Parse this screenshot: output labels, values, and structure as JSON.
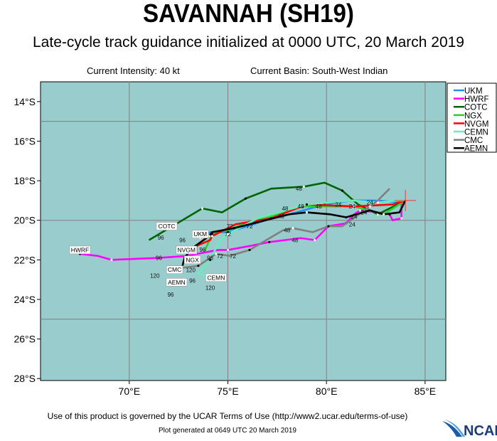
{
  "header": {
    "title": "SAVANNAH (SH19)",
    "subtitle": "Late-cycle track guidance initialized at 0000 UTC, 20 March 2019",
    "intensity": "Current Intensity: 40 kt",
    "basin": "Current Basin: South-West Indian"
  },
  "footer": {
    "terms": "Use of this product is governed by the UCAR Terms of Use (http://www2.ucar.edu/terms-of-use)",
    "generated": "Plot generated at 0649 UTC   20 March 2019",
    "logo_text": "NCAR"
  },
  "colors": {
    "ocean": "#99cccc",
    "grid": "#808080",
    "start_marker": "#ff3333"
  },
  "chart_data": {
    "type": "line",
    "xlim": [
      65.5,
      86.05
    ],
    "ylim": [
      -28.1,
      -13.0
    ],
    "grid": true,
    "legend": "top-right-outside",
    "x_ticks": [
      {
        "v": 70,
        "label": "70°E"
      },
      {
        "v": 75,
        "label": "75°E"
      },
      {
        "v": 80,
        "label": "80°E"
      },
      {
        "v": 85,
        "label": "85°E"
      }
    ],
    "y_ticks": [
      {
        "v": -14,
        "label": "14°S"
      },
      {
        "v": -16,
        "label": "16°S"
      },
      {
        "v": -18,
        "label": "18°S"
      },
      {
        "v": -20,
        "label": "20°S"
      },
      {
        "v": -22,
        "label": "22°S"
      },
      {
        "v": -24,
        "label": "24°S"
      },
      {
        "v": -26,
        "label": "26°S"
      },
      {
        "v": -28,
        "label": "28°S"
      }
    ],
    "grid_lon": [
      70,
      75,
      80,
      85
    ],
    "grid_lat": [
      -15,
      -20,
      -25
    ],
    "start": [
      84.0,
      -19.0
    ],
    "series": [
      {
        "name": "UKM",
        "color": "#1e90ff",
        "label_at": [
          73.6,
          -20.7
        ],
        "points": [
          [
            84,
            -19
          ],
          [
            83.8,
            -19.1
          ],
          [
            82.6,
            -19.0
          ],
          [
            81.3,
            -19.0
          ],
          [
            79.9,
            -19.2
          ],
          [
            78.1,
            -19.7
          ],
          [
            77.2,
            -19.9
          ],
          [
            76.0,
            -20.3
          ],
          [
            75.0,
            -20.6
          ],
          [
            74.1,
            -20.6
          ],
          [
            73.6,
            -20.9
          ]
        ]
      },
      {
        "name": "HWRF",
        "color": "#ff00ff",
        "label_at": [
          67.5,
          -21.5
        ],
        "points": [
          [
            84,
            -19
          ],
          [
            83.8,
            -19.2
          ],
          [
            83.8,
            -19.9
          ],
          [
            83.35,
            -20.0
          ],
          [
            83.2,
            -19.7
          ],
          [
            82.6,
            -19.6
          ],
          [
            81.7,
            -19.5
          ],
          [
            81.4,
            -19.7
          ],
          [
            81.0,
            -20.15
          ],
          [
            80.1,
            -20.3
          ],
          [
            79.4,
            -21.0
          ],
          [
            78.7,
            -20.9
          ],
          [
            77.1,
            -21.1
          ],
          [
            76.1,
            -21.3
          ],
          [
            75.0,
            -21.5
          ],
          [
            74.5,
            -21.5
          ],
          [
            72.9,
            -21.8
          ],
          [
            71.5,
            -21.9
          ],
          [
            69.1,
            -22.0
          ],
          [
            68.4,
            -21.8
          ],
          [
            67.5,
            -21.7
          ]
        ]
      },
      {
        "name": "COTC",
        "color": "#006400",
        "label_at": [
          71.9,
          -20.3
        ],
        "points": [
          [
            84,
            -19
          ],
          [
            83.2,
            -19.4
          ],
          [
            82.6,
            -19.7
          ],
          [
            81.6,
            -19.2
          ],
          [
            80.8,
            -18.5
          ],
          [
            79.9,
            -18.1
          ],
          [
            78.85,
            -18.3
          ],
          [
            77.2,
            -18.4
          ],
          [
            75.9,
            -18.9
          ],
          [
            74.7,
            -19.6
          ],
          [
            73.7,
            -19.4
          ],
          [
            71.0,
            -21.0
          ]
        ]
      },
      {
        "name": "NGX",
        "color": "#33cc33",
        "label_at": [
          73.2,
          -22.0
        ],
        "points": [
          [
            84,
            -19
          ],
          [
            82.9,
            -19.7
          ],
          [
            81.4,
            -19.3
          ],
          [
            79.9,
            -19.3
          ],
          [
            78.8,
            -19.3
          ],
          [
            77.2,
            -19.8
          ],
          [
            76.0,
            -20.1
          ],
          [
            75.0,
            -20.5
          ],
          [
            74.2,
            -20.7
          ],
          [
            73.8,
            -21.6
          ]
        ]
      },
      {
        "name": "NVGM",
        "color": "#ff0000",
        "label_at": [
          72.9,
          -21.5
        ],
        "points": [
          [
            84,
            -19
          ],
          [
            83.35,
            -19.2
          ],
          [
            81.4,
            -19.3
          ],
          [
            79.0,
            -19.2
          ],
          [
            77.2,
            -19.9
          ],
          [
            75.4,
            -20.2
          ],
          [
            74.2,
            -20.8
          ],
          [
            74.1,
            -21.0
          ],
          [
            73.4,
            -21.3
          ],
          [
            73.4,
            -21.7
          ]
        ]
      },
      {
        "name": "CEMN",
        "color": "#66eebb",
        "label_at": [
          74.4,
          -22.9
        ],
        "points": [
          [
            84,
            -19
          ],
          [
            83.6,
            -19.0
          ],
          [
            82.6,
            -19.1
          ],
          [
            81.3,
            -19.0
          ],
          [
            79.0,
            -19.2
          ],
          [
            76.5,
            -19.9
          ],
          [
            75.0,
            -20.7
          ],
          [
            74.6,
            -21.0
          ],
          [
            74.1,
            -22.0
          ],
          [
            73.5,
            -22.7
          ],
          [
            74.3,
            -22.9
          ]
        ]
      },
      {
        "name": "CMC",
        "color": "#808080",
        "label_at": [
          72.3,
          -22.5
        ],
        "points": [
          [
            83.2,
            -18.4
          ],
          [
            82.6,
            -19.0
          ],
          [
            82.2,
            -19.3
          ],
          [
            80.8,
            -20.3
          ],
          [
            80.1,
            -20.3
          ],
          [
            79.3,
            -20.6
          ],
          [
            78.3,
            -20.4
          ],
          [
            77.8,
            -20.5
          ],
          [
            76.1,
            -21.5
          ],
          [
            75.1,
            -21.8
          ],
          [
            74.4,
            -21.7
          ],
          [
            74.1,
            -21.9
          ],
          [
            73.5,
            -22.3
          ],
          [
            72.7,
            -22.4
          ],
          [
            72.5,
            -22.4
          ]
        ]
      },
      {
        "name": "AEMN",
        "color": "#000000",
        "label_at": [
          72.4,
          -22.7
        ],
        "points": [
          [
            84,
            -19
          ],
          [
            83.7,
            -19.6
          ],
          [
            82.9,
            -19.7
          ],
          [
            82.2,
            -19.5
          ],
          [
            81.0,
            -19.85
          ],
          [
            80.2,
            -19.7
          ],
          [
            79.0,
            -19.6
          ],
          [
            78.1,
            -19.7
          ],
          [
            75.3,
            -20.4
          ],
          [
            74.2,
            -20.6
          ],
          [
            74.05,
            -20.8
          ],
          [
            73.2,
            -21.4
          ],
          [
            72.8,
            -21.9
          ],
          [
            72.7,
            -22.3
          ]
        ]
      }
    ],
    "tau_labels": [
      {
        "text": "48",
        "at": [
          78.6,
          -18.4
        ]
      },
      {
        "text": "24",
        "at": [
          80.6,
          -19.2
        ]
      },
      {
        "text": "24",
        "at": [
          81.3,
          -19.3
        ]
      },
      {
        "text": "24",
        "at": [
          82.2,
          -19.1
        ]
      },
      {
        "text": "48",
        "at": [
          77.9,
          -19.4
        ]
      },
      {
        "text": "48",
        "at": [
          78.7,
          -19.3
        ]
      },
      {
        "text": "48",
        "at": [
          79.6,
          -19.3
        ]
      },
      {
        "text": "48",
        "at": [
          77.7,
          -19.8
        ]
      },
      {
        "text": "24",
        "at": [
          81.4,
          -19.6
        ]
      },
      {
        "text": "24",
        "at": [
          81.9,
          -19.6
        ]
      },
      {
        "text": "24",
        "at": [
          81.3,
          -20.0
        ]
      },
      {
        "text": "72",
        "at": [
          76.1,
          -20.3
        ]
      },
      {
        "text": "72",
        "at": [
          75.1,
          -20.3
        ]
      },
      {
        "text": "72",
        "at": [
          75.0,
          -20.7
        ]
      },
      {
        "text": "48",
        "at": [
          78.0,
          -20.5
        ]
      },
      {
        "text": "48",
        "at": [
          78.4,
          -21.0
        ]
      },
      {
        "text": "72",
        "at": [
          74.6,
          -21.8
        ]
      },
      {
        "text": "96",
        "at": [
          71.6,
          -20.65
        ]
      },
      {
        "text": "96",
        "at": [
          73.2,
          -21.0
        ]
      },
      {
        "text": "96",
        "at": [
          71.5,
          -21.9
        ]
      },
      {
        "text": "96",
        "at": [
          73.5,
          -21.7
        ]
      },
      {
        "text": "96",
        "at": [
          74.1,
          -21.9
        ]
      },
      {
        "text": "72",
        "at": [
          75.0,
          -21.8
        ]
      },
      {
        "text": "120",
        "at": [
          72.9,
          -22.3
        ]
      },
      {
        "text": "96",
        "at": [
          73.2,
          -22.4
        ]
      },
      {
        "text": "120",
        "at": [
          71.8,
          -22.8
        ]
      },
      {
        "text": "96",
        "at": [
          72.1,
          -23.1
        ]
      },
      {
        "text": "120",
        "at": [
          74.1,
          -23.2
        ]
      }
    ]
  }
}
